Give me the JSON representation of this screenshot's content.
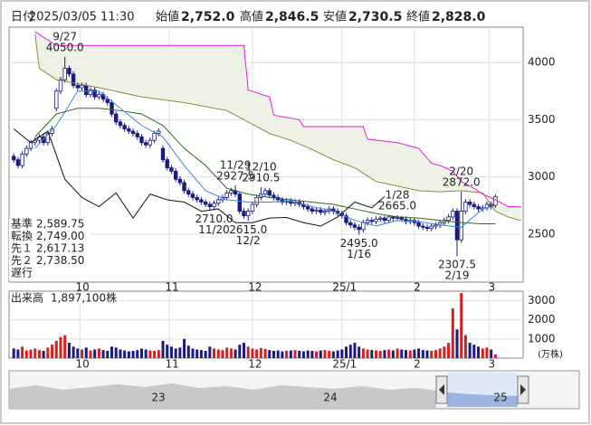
{
  "header": {
    "date_name": "日付",
    "date": "2025/03/05 11:30",
    "items": [
      {
        "name": "始値",
        "value": 2752,
        "label": "2,752.0",
        "color": "#111111"
      },
      {
        "name": "高値",
        "value": 2846.5,
        "label": "2,846.5",
        "color": "#d01818"
      },
      {
        "name": "安値",
        "value": 2730.5,
        "label": "2,730.5",
        "color": "#108a10"
      },
      {
        "name": "終値",
        "value": 2828,
        "label": "2,828.0",
        "color": "#111111"
      }
    ]
  },
  "chart_data": [
    {
      "type": "candlestick",
      "open": [
        3180,
        3150,
        3100,
        3200,
        3250,
        3300,
        3320,
        3350,
        3300,
        3380,
        3600,
        3750,
        3850,
        3950,
        3900,
        3800,
        3780,
        3800,
        3720,
        3760,
        3700,
        3720,
        3680,
        3650,
        3550,
        3480,
        3450,
        3420,
        3400,
        3380,
        3350,
        3300,
        3280,
        3320,
        3380,
        3250,
        3150,
        3080,
        3050,
        2980,
        2950,
        2880,
        2850,
        2820,
        2800,
        2780,
        2760,
        2740,
        2770,
        2800,
        2820,
        2860,
        2880,
        2850,
        2700,
        2660,
        2700,
        2760,
        2820,
        2850,
        2880,
        2840,
        2820,
        2800,
        2780,
        2790,
        2770,
        2780,
        2760,
        2740,
        2720,
        2700,
        2710,
        2690,
        2700,
        2720,
        2700,
        2680,
        2660,
        2600,
        2580,
        2560,
        2540,
        2600,
        2620,
        2610,
        2630,
        2640,
        2620,
        2650,
        2640,
        2645,
        2630,
        2610,
        2620,
        2600,
        2570,
        2560,
        2550,
        2570,
        2580,
        2600,
        2620,
        2650,
        2700,
        2450,
        2700,
        2780,
        2760,
        2740,
        2720,
        2730,
        2760,
        2752
      ],
      "high": [
        3205,
        3175,
        3225,
        3275,
        3325,
        3345,
        3375,
        3375,
        3405,
        3445,
        3775,
        3875,
        4050,
        3975,
        3925,
        3825,
        3825,
        3825,
        3785,
        3785,
        3745,
        3745,
        3705,
        3675,
        3575,
        3505,
        3475,
        3445,
        3425,
        3405,
        3375,
        3325,
        3345,
        3405,
        3425,
        3275,
        3175,
        3105,
        3075,
        3005,
        2975,
        2905,
        2875,
        2845,
        2825,
        2805,
        2785,
        2795,
        2825,
        2845,
        2885,
        2905,
        2927.5,
        2875,
        2725,
        2725,
        2785,
        2845,
        2910.5,
        2905,
        2905,
        2865,
        2845,
        2825,
        2815,
        2815,
        2805,
        2805,
        2785,
        2765,
        2745,
        2735,
        2735,
        2725,
        2745,
        2745,
        2725,
        2705,
        2685,
        2625,
        2605,
        2585,
        2625,
        2645,
        2645,
        2655,
        2660,
        2660,
        2660,
        2660,
        2665,
        2660,
        2655,
        2645,
        2645,
        2625,
        2595,
        2585,
        2595,
        2605,
        2625,
        2645,
        2675,
        2725,
        2725,
        2872,
        2805,
        2805,
        2785,
        2765,
        2755,
        2785,
        2785,
        2846.5
      ],
      "low": [
        3125,
        3075,
        3075,
        3175,
        3225,
        3275,
        3295,
        3275,
        3275,
        3355,
        3575,
        3725,
        3825,
        3875,
        3775,
        3755,
        3755,
        3695,
        3695,
        3675,
        3675,
        3655,
        3625,
        3525,
        3455,
        3425,
        3395,
        3375,
        3355,
        3325,
        3275,
        3255,
        3255,
        3295,
        3355,
        3125,
        3055,
        3025,
        2955,
        2925,
        2855,
        2825,
        2795,
        2775,
        2755,
        2735,
        2715,
        2710,
        2745,
        2775,
        2795,
        2835,
        2825,
        2675,
        2635,
        2615,
        2675,
        2735,
        2795,
        2825,
        2815,
        2795,
        2775,
        2755,
        2755,
        2745,
        2745,
        2735,
        2715,
        2695,
        2675,
        2675,
        2665,
        2665,
        2675,
        2675,
        2655,
        2635,
        2575,
        2555,
        2535,
        2495,
        2515,
        2575,
        2585,
        2585,
        2605,
        2595,
        2595,
        2615,
        2615,
        2605,
        2585,
        2585,
        2575,
        2545,
        2535,
        2525,
        2525,
        2545,
        2555,
        2575,
        2595,
        2625,
        2307.5,
        2425,
        2675,
        2735,
        2715,
        2695,
        2695,
        2705,
        2715,
        2730.5
      ],
      "close": [
        3150,
        3100,
        3200,
        3250,
        3300,
        3320,
        3350,
        3300,
        3380,
        3420,
        3750,
        3850,
        3950,
        3900,
        3800,
        3780,
        3800,
        3720,
        3760,
        3700,
        3720,
        3680,
        3650,
        3550,
        3480,
        3450,
        3420,
        3400,
        3380,
        3350,
        3300,
        3280,
        3320,
        3380,
        3400,
        3150,
        3080,
        3050,
        2980,
        2950,
        2880,
        2850,
        2820,
        2800,
        2780,
        2760,
        2740,
        2770,
        2800,
        2820,
        2860,
        2880,
        2850,
        2700,
        2660,
        2700,
        2760,
        2820,
        2850,
        2880,
        2840,
        2820,
        2800,
        2780,
        2790,
        2770,
        2780,
        2760,
        2740,
        2720,
        2700,
        2710,
        2690,
        2700,
        2720,
        2700,
        2680,
        2660,
        2600,
        2580,
        2560,
        2540,
        2600,
        2620,
        2610,
        2630,
        2640,
        2620,
        2650,
        2640,
        2645,
        2630,
        2610,
        2620,
        2600,
        2570,
        2560,
        2550,
        2570,
        2580,
        2600,
        2620,
        2650,
        2700,
        2450,
        2700,
        2780,
        2760,
        2740,
        2720,
        2730,
        2760,
        2740,
        2828
      ],
      "up_color": "#ffffff",
      "down_color": "#1a1a80",
      "xlim": [
        -1.1,
        119.5
      ],
      "xticks": [
        {
          "value": 15.5,
          "label": "10"
        },
        {
          "value": 36.5,
          "label": "11"
        },
        {
          "value": 56,
          "label": "12"
        },
        {
          "value": 77,
          "label": "25/1"
        },
        {
          "value": 94,
          "label": "2"
        },
        {
          "value": 111.5,
          "label": "3"
        }
      ],
      "ylim": [
        2080,
        4310
      ],
      "yticks": [
        2500,
        3000,
        3500,
        4000
      ],
      "grid": true,
      "cloud_color": "#eef2e4",
      "series": [
        {
          "name": "基準",
          "color": "#2e6b1e",
          "value_label": "2,589.75",
          "x": [
            5,
            10,
            15,
            20,
            25,
            30,
            35,
            40,
            45,
            50,
            55,
            60,
            65,
            70,
            75,
            80,
            85,
            90,
            95,
            100,
            105,
            110,
            113
          ],
          "values": [
            3350,
            3550,
            3600,
            3600,
            3580,
            3550,
            3450,
            3250,
            3100,
            2900,
            2850,
            2820,
            2800,
            2780,
            2760,
            2720,
            2680,
            2650,
            2640,
            2620,
            2600,
            2590,
            2589.75
          ]
        },
        {
          "name": "転換",
          "color": "#3a86e0",
          "value_label": "2,749.00",
          "x": [
            5,
            10,
            15,
            20,
            25,
            30,
            35,
            40,
            45,
            50,
            55,
            60,
            65,
            70,
            75,
            80,
            85,
            90,
            95,
            100,
            105,
            110,
            113
          ],
          "values": [
            3250,
            3450,
            3750,
            3750,
            3600,
            3450,
            3350,
            3100,
            2880,
            2800,
            2780,
            2780,
            2790,
            2740,
            2700,
            2620,
            2570,
            2620,
            2610,
            2580,
            2560,
            2720,
            2749
          ]
        },
        {
          "name": "先１",
          "color": "#8c8a3a",
          "value_label": "2,617.13",
          "x": [
            5,
            6,
            10,
            20,
            30,
            40,
            50,
            55,
            60,
            65,
            70,
            75,
            80,
            85,
            90,
            95,
            100,
            105,
            110,
            113,
            116,
            119
          ],
          "values": [
            4250,
            3950,
            3850,
            3780,
            3700,
            3650,
            3580,
            3480,
            3380,
            3320,
            3240,
            3150,
            3080,
            2960,
            2920,
            2880,
            2870,
            2880,
            2860,
            2700,
            2650,
            2617.13
          ]
        },
        {
          "name": "先２",
          "color": "#e619e6",
          "value_label": "2,738.50",
          "x": [
            5,
            10,
            54,
            55,
            60,
            61,
            67,
            68,
            82,
            83,
            90,
            95,
            98,
            100,
            103,
            105,
            108,
            110,
            113,
            116,
            119
          ],
          "values": [
            4270,
            4150,
            4150,
            3760,
            3700,
            3540,
            3500,
            3440,
            3440,
            3330,
            3300,
            3250,
            3120,
            3100,
            3050,
            2960,
            2900,
            2850,
            2800,
            2740,
            2738.5
          ]
        },
        {
          "name": "遅行",
          "color": "#111111",
          "x": [
            0,
            4,
            8,
            12,
            16,
            20,
            24,
            28,
            32,
            36,
            40,
            44,
            48,
            52,
            56,
            60,
            64,
            68,
            72,
            76,
            80,
            84,
            87
          ],
          "values": [
            3420,
            3300,
            3400,
            2980,
            2820,
            2740,
            2860,
            2640,
            2850,
            2800,
            2780,
            2700,
            2720,
            2600,
            2600,
            2640,
            2645,
            2600,
            2570,
            2650,
            2780,
            2730,
            2828
          ]
        }
      ],
      "annotations": [
        {
          "x": 12,
          "date": "9/27",
          "label": "4050.0"
        },
        {
          "x": 47,
          "date": "11/20",
          "label": "2710.0"
        },
        {
          "x": 52,
          "date": "11/29",
          "label": "2927.5"
        },
        {
          "x": 55,
          "date": "12/2",
          "label": "2615.0"
        },
        {
          "x": 58,
          "date": "12/10",
          "label": "2910.5"
        },
        {
          "x": 81,
          "date": "1/16",
          "label": "2495.0"
        },
        {
          "x": 90,
          "date": "1/28",
          "label": "2665.0"
        },
        {
          "x": 104,
          "date": "2/19",
          "label": "2307.5"
        },
        {
          "x": 105,
          "date": "2/20",
          "label": "2872.0"
        }
      ]
    },
    {
      "type": "bar",
      "title": "出来高",
      "subtitle": "1,897,100株",
      "unit": "(万株)",
      "values": [
        500,
        450,
        600,
        400,
        450,
        500,
        420,
        380,
        550,
        700,
        900,
        1100,
        1200,
        800,
        600,
        500,
        450,
        550,
        400,
        450,
        500,
        420,
        380,
        600,
        550,
        450,
        400,
        350,
        380,
        420,
        500,
        450,
        400,
        380,
        420,
        900,
        700,
        600,
        500,
        550,
        1000,
        650,
        500,
        450,
        420,
        380,
        600,
        500,
        450,
        420,
        550,
        500,
        450,
        700,
        800,
        600,
        500,
        450,
        520,
        480,
        420,
        380,
        400,
        350,
        380,
        400,
        420,
        380,
        350,
        400,
        380,
        350,
        400,
        420,
        380,
        350,
        400,
        450,
        600,
        700,
        800,
        600,
        500,
        450,
        420,
        400,
        380,
        420,
        450,
        400,
        500,
        450,
        420,
        400,
        450,
        500,
        420,
        400,
        380,
        420,
        500,
        600,
        800,
        2600,
        1500,
        3400,
        1200,
        800,
        700,
        600,
        500,
        550,
        450,
        189.71
      ],
      "up_color": "#d42020",
      "down_color": "#1a1a80",
      "ylim": [
        0,
        3500
      ],
      "yticks": [
        1000,
        2000,
        3000
      ]
    }
  ],
  "navigator": {
    "labels": [
      "23",
      "24",
      "25"
    ]
  }
}
